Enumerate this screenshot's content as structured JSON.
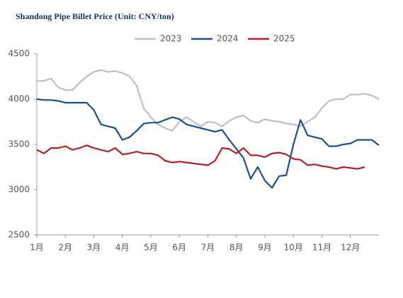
{
  "chart_data": {
    "type": "line",
    "title": "Shandong Pipe Billet Price (Unit: CNY/ton)",
    "categories": [
      "1月",
      null,
      null,
      null,
      "2月",
      null,
      null,
      null,
      "3月",
      null,
      null,
      null,
      "4月",
      null,
      null,
      null,
      "5月",
      null,
      null,
      null,
      "6月",
      null,
      null,
      null,
      "7月",
      null,
      null,
      null,
      "8月",
      null,
      null,
      null,
      "9月",
      null,
      null,
      null,
      "10月",
      null,
      null,
      null,
      "11月",
      null,
      null,
      null,
      "12月",
      null,
      null,
      null,
      null
    ],
    "series": [
      {
        "name": "2023",
        "color": "#bfbfbf",
        "values": [
          4200,
          4200,
          4230,
          4130,
          4100,
          4100,
          4180,
          4250,
          4300,
          4320,
          4300,
          4310,
          4290,
          4250,
          4150,
          3900,
          3800,
          3720,
          3680,
          3650,
          3750,
          3800,
          3750,
          3700,
          3750,
          3740,
          3700,
          3760,
          3800,
          3820,
          3760,
          3740,
          3780,
          3760,
          3750,
          3730,
          3720,
          3700,
          3750,
          3800,
          3900,
          3980,
          4000,
          4000,
          4050,
          4050,
          4060,
          4040,
          4000
        ]
      },
      {
        "name": "2024",
        "color": "#1f4e8c",
        "values": [
          4000,
          3990,
          3990,
          3980,
          3960,
          3960,
          3960,
          3960,
          3880,
          3720,
          3700,
          3680,
          3550,
          3580,
          3650,
          3730,
          3740,
          3740,
          3770,
          3800,
          3780,
          3720,
          3700,
          3680,
          3660,
          3640,
          3660,
          3550,
          3450,
          3350,
          3120,
          3250,
          3100,
          3020,
          3150,
          3160,
          3500,
          3770,
          3600,
          3580,
          3560,
          3480,
          3480,
          3500,
          3510,
          3550,
          3550,
          3550,
          3490
        ]
      },
      {
        "name": "2025",
        "color": "#b22025",
        "values": [
          3440,
          3400,
          3460,
          3460,
          3480,
          3440,
          3460,
          3490,
          3460,
          3440,
          3420,
          3460,
          3390,
          3400,
          3420,
          3400,
          3400,
          3380,
          3320,
          3300,
          3310,
          3300,
          3290,
          3280,
          3270,
          3320,
          3460,
          3450,
          3400,
          3460,
          3380,
          3380,
          3360,
          3400,
          3410,
          3390,
          3340,
          3330,
          3270,
          3280,
          3260,
          3250,
          3230,
          3250,
          3240,
          3230,
          3250,
          null,
          null
        ]
      }
    ],
    "ylim": [
      2500,
      4500
    ],
    "yticks": [
      2500,
      3000,
      3500,
      4000,
      4500
    ],
    "grid": false
  }
}
